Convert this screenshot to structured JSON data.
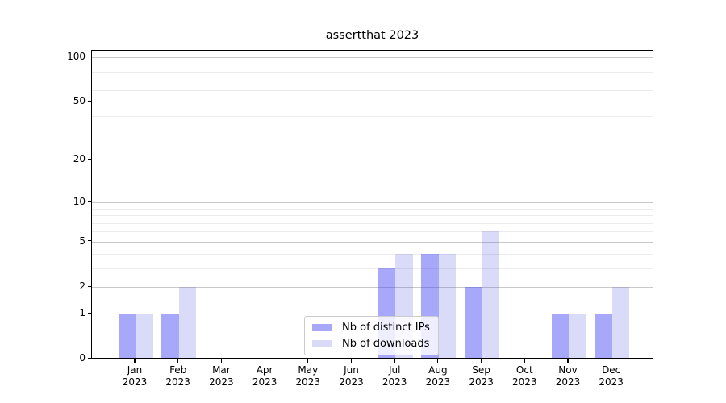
{
  "chart_data": {
    "type": "bar",
    "title": "assertthat 2023",
    "categories": [
      "Jan",
      "Feb",
      "Mar",
      "Apr",
      "May",
      "Jun",
      "Jul",
      "Aug",
      "Sep",
      "Oct",
      "Nov",
      "Dec"
    ],
    "x_year": "2023",
    "series": [
      {
        "name": "Nb of distinct IPs",
        "color": "rgba(62,62,244,0.45)",
        "color_hex": "#a8a8fa",
        "values": [
          1,
          1,
          0,
          0,
          0,
          0,
          3,
          4,
          2,
          0,
          1,
          1
        ]
      },
      {
        "name": "Nb of downloads",
        "color": "rgba(70,70,225,0.20)",
        "color_hex": "#dbdbf9",
        "values": [
          1,
          2,
          0,
          0,
          0,
          0,
          4,
          4,
          6,
          0,
          1,
          2
        ]
      }
    ],
    "yscale": "log1p",
    "ylim": [
      0,
      110
    ],
    "yticks": [
      0,
      1,
      2,
      5,
      10,
      20,
      50,
      100
    ],
    "minor_yticks": [
      3,
      4,
      6,
      7,
      8,
      9,
      30,
      40,
      60,
      70,
      80,
      90
    ],
    "grid": "horizontal",
    "legend_position": "lower-center",
    "xlabel": "",
    "ylabel": ""
  },
  "colors": {
    "major_grid": "#c9c9c9",
    "minor_grid": "#ececec",
    "axis": "#000000",
    "legend_border": "#cccccc"
  }
}
